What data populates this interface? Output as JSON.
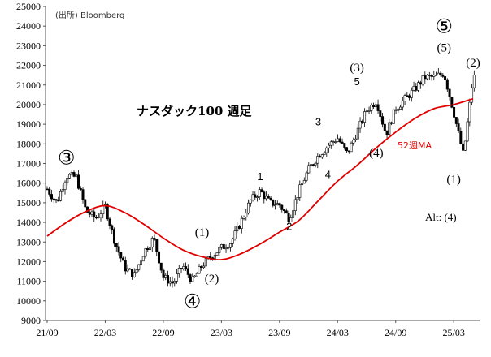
{
  "source": "(出所)  Bloomberg",
  "chart_data": {
    "type": "candlestick",
    "title": "ナスダック100 週足",
    "ylim": [
      9000,
      25000
    ],
    "yticks": [
      9000,
      10000,
      11000,
      12000,
      13000,
      14000,
      15000,
      16000,
      17000,
      18000,
      19000,
      20000,
      21000,
      22000,
      23000,
      24000,
      25000
    ],
    "xticks": [
      "21/09",
      "22/03",
      "22/09",
      "23/03",
      "23/09",
      "24/03",
      "24/09",
      "25/03"
    ],
    "x_start": "2021-09",
    "x_end": "2025-05",
    "ma_label": "52週MA",
    "ma_color": "#e00000",
    "candle_color": "#000000",
    "price_path": [
      [
        "2021-09",
        15700
      ],
      [
        "2021-10",
        15000
      ],
      [
        "2021-11",
        16400
      ],
      [
        "2021-12",
        16300
      ],
      [
        "2022-01",
        14600
      ],
      [
        "2022-02",
        14200
      ],
      [
        "2022-03",
        14800
      ],
      [
        "2022-04",
        13000
      ],
      [
        "2022-05",
        11700
      ],
      [
        "2022-06",
        11300
      ],
      [
        "2022-07",
        12500
      ],
      [
        "2022-08",
        13200
      ],
      [
        "2022-09",
        11200
      ],
      [
        "2022-10",
        10900
      ],
      [
        "2022-11",
        11800
      ],
      [
        "2022-12",
        11000
      ],
      [
        "2023-01",
        11800
      ],
      [
        "2023-02",
        12300
      ],
      [
        "2023-03",
        12700
      ],
      [
        "2023-04",
        13000
      ],
      [
        "2023-05",
        14000
      ],
      [
        "2023-06",
        15100
      ],
      [
        "2023-07",
        15600
      ],
      [
        "2023-08",
        15000
      ],
      [
        "2023-09",
        14900
      ],
      [
        "2023-10",
        14200
      ],
      [
        "2023-11",
        15600
      ],
      [
        "2023-12",
        16700
      ],
      [
        "2024-01",
        17400
      ],
      [
        "2024-02",
        17900
      ],
      [
        "2024-03",
        18300
      ],
      [
        "2024-04",
        17500
      ],
      [
        "2024-05",
        18600
      ],
      [
        "2024-06",
        19700
      ],
      [
        "2024-07",
        20200
      ],
      [
        "2024-08",
        18500
      ],
      [
        "2024-09",
        19800
      ],
      [
        "2024-10",
        20300
      ],
      [
        "2024-11",
        20800
      ],
      [
        "2024-12",
        21400
      ],
      [
        "2025-01",
        21400
      ],
      [
        "2025-02",
        21600
      ],
      [
        "2025-03",
        19600
      ],
      [
        "2025-04",
        17400
      ],
      [
        "2025-05",
        21400
      ]
    ],
    "ma_path": [
      [
        "2021-09",
        13300
      ],
      [
        "2021-11",
        14000
      ],
      [
        "2022-01",
        14550
      ],
      [
        "2022-03",
        14850
      ],
      [
        "2022-05",
        14500
      ],
      [
        "2022-07",
        13900
      ],
      [
        "2022-09",
        13200
      ],
      [
        "2022-11",
        12600
      ],
      [
        "2023-01",
        12250
      ],
      [
        "2023-03",
        12100
      ],
      [
        "2023-05",
        12400
      ],
      [
        "2023-07",
        12900
      ],
      [
        "2023-09",
        13500
      ],
      [
        "2023-11",
        14100
      ],
      [
        "2024-01",
        15100
      ],
      [
        "2024-03",
        16100
      ],
      [
        "2024-05",
        16900
      ],
      [
        "2024-07",
        17800
      ],
      [
        "2024-09",
        18600
      ],
      [
        "2024-11",
        19300
      ],
      [
        "2025-01",
        19800
      ],
      [
        "2025-03",
        20000
      ],
      [
        "2025-05",
        20300
      ]
    ],
    "annotations": [
      {
        "text": "③",
        "x": "2021-11",
        "y": 16950,
        "style": "circled"
      },
      {
        "text": "④",
        "x": "2022-12",
        "y": 9650,
        "style": "circled"
      },
      {
        "text": "⑤",
        "x": "2025-02",
        "y": 23650,
        "style": "circled"
      },
      {
        "text": "(1)",
        "x": "2023-01",
        "y": 13300,
        "style": "wave"
      },
      {
        "text": "(2)",
        "x": "2023-02",
        "y": 10950,
        "style": "wave"
      },
      {
        "text": "1",
        "x": "2023-07",
        "y": 16150,
        "style": "small"
      },
      {
        "text": "2",
        "x": "2023-10",
        "y": 13600,
        "style": "small"
      },
      {
        "text": "3",
        "x": "2024-01",
        "y": 18950,
        "style": "small"
      },
      {
        "text": "4",
        "x": "2024-02",
        "y": 16250,
        "style": "small"
      },
      {
        "text": "(3)",
        "x": "2024-05",
        "y": 21700,
        "style": "wave"
      },
      {
        "text": "5",
        "x": "2024-05",
        "y": 21000,
        "style": "small"
      },
      {
        "text": "(4)",
        "x": "2024-07",
        "y": 17350,
        "style": "wave"
      },
      {
        "text": "(5)",
        "x": "2025-02",
        "y": 22700,
        "style": "wave"
      },
      {
        "text": "(1)",
        "x": "2025-03",
        "y": 16000,
        "style": "wave"
      },
      {
        "text": "(2)",
        "x": "2025-05",
        "y": 21950,
        "style": "wave"
      }
    ],
    "alt_note": "Alt: (4)"
  }
}
